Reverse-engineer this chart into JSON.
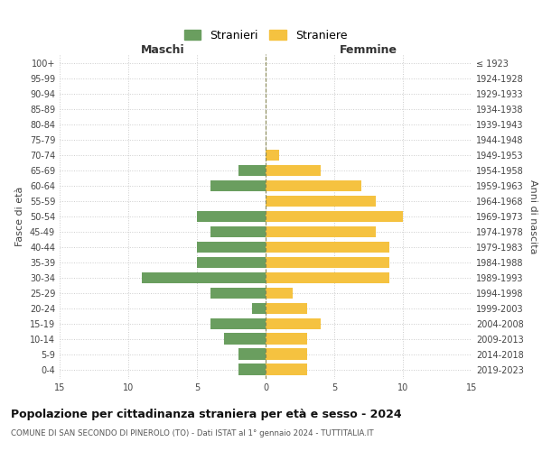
{
  "age_groups": [
    "0-4",
    "5-9",
    "10-14",
    "15-19",
    "20-24",
    "25-29",
    "30-34",
    "35-39",
    "40-44",
    "45-49",
    "50-54",
    "55-59",
    "60-64",
    "65-69",
    "70-74",
    "75-79",
    "80-84",
    "85-89",
    "90-94",
    "95-99",
    "100+"
  ],
  "birth_years": [
    "2019-2023",
    "2014-2018",
    "2009-2013",
    "2004-2008",
    "1999-2003",
    "1994-1998",
    "1989-1993",
    "1984-1988",
    "1979-1983",
    "1974-1978",
    "1969-1973",
    "1964-1968",
    "1959-1963",
    "1954-1958",
    "1949-1953",
    "1944-1948",
    "1939-1943",
    "1934-1938",
    "1929-1933",
    "1924-1928",
    "≤ 1923"
  ],
  "maschi": [
    2,
    2,
    3,
    4,
    1,
    4,
    9,
    5,
    5,
    4,
    5,
    0,
    4,
    2,
    0,
    0,
    0,
    0,
    0,
    0,
    0
  ],
  "femmine": [
    3,
    3,
    3,
    4,
    3,
    2,
    9,
    9,
    9,
    8,
    10,
    8,
    7,
    4,
    1,
    0,
    0,
    0,
    0,
    0,
    0
  ],
  "color_maschi": "#6a9e5f",
  "color_femmine": "#f5c240",
  "title": "Popolazione per cittadinanza straniera per età e sesso - 2024",
  "subtitle": "COMUNE DI SAN SECONDO DI PINEROLO (TO) - Dati ISTAT al 1° gennaio 2024 - TUTTITALIA.IT",
  "label_maschi": "Stranieri",
  "label_femmine": "Straniere",
  "xlabel_left": "Maschi",
  "xlabel_right": "Femmine",
  "ylabel_left": "Fasce di età",
  "ylabel_right": "Anni di nascita",
  "xlim": 15,
  "background_color": "#ffffff",
  "grid_color": "#cccccc"
}
